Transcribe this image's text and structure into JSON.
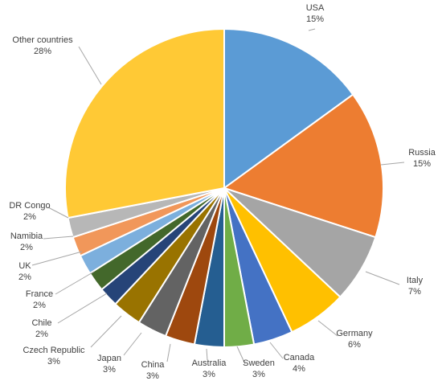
{
  "chart_data": {
    "type": "pie",
    "start": "12 o'clock",
    "direction": "clockwise",
    "slices": [
      {
        "label": "USA",
        "value": 15,
        "pct_label": "15%",
        "color": "#5b9bd5"
      },
      {
        "label": "Russia",
        "value": 15,
        "pct_label": "15%",
        "color": "#ed7d31"
      },
      {
        "label": "Italy",
        "value": 7,
        "pct_label": "7%",
        "color": "#a5a5a5"
      },
      {
        "label": "Germany",
        "value": 6,
        "pct_label": "6%",
        "color": "#ffc000"
      },
      {
        "label": "Canada",
        "value": 4,
        "pct_label": "4%",
        "color": "#4472c4"
      },
      {
        "label": "Sweden",
        "value": 3,
        "pct_label": "3%",
        "color": "#70ad47"
      },
      {
        "label": "Australia",
        "value": 3,
        "pct_label": "3%",
        "color": "#255e91"
      },
      {
        "label": "China",
        "value": 3,
        "pct_label": "3%",
        "color": "#9e480e"
      },
      {
        "label": "Japan",
        "value": 3,
        "pct_label": "3%",
        "color": "#636363"
      },
      {
        "label": "Czech Republic",
        "value": 3,
        "pct_label": "3%",
        "color": "#997300"
      },
      {
        "label": "Chile",
        "value": 2,
        "pct_label": "2%",
        "color": "#264478"
      },
      {
        "label": "France",
        "value": 2,
        "pct_label": "2%",
        "color": "#43682b"
      },
      {
        "label": "UK",
        "value": 2,
        "pct_label": "2%",
        "color": "#7cafdd"
      },
      {
        "label": "Namibia",
        "value": 2,
        "pct_label": "2%",
        "color": "#f1975a"
      },
      {
        "label": "DR Congo",
        "value": 2,
        "pct_label": "2%",
        "color": "#b7b7b7"
      },
      {
        "label": "Other countries",
        "value": 28,
        "pct_label": "28%",
        "color": "#ffc935"
      }
    ]
  }
}
